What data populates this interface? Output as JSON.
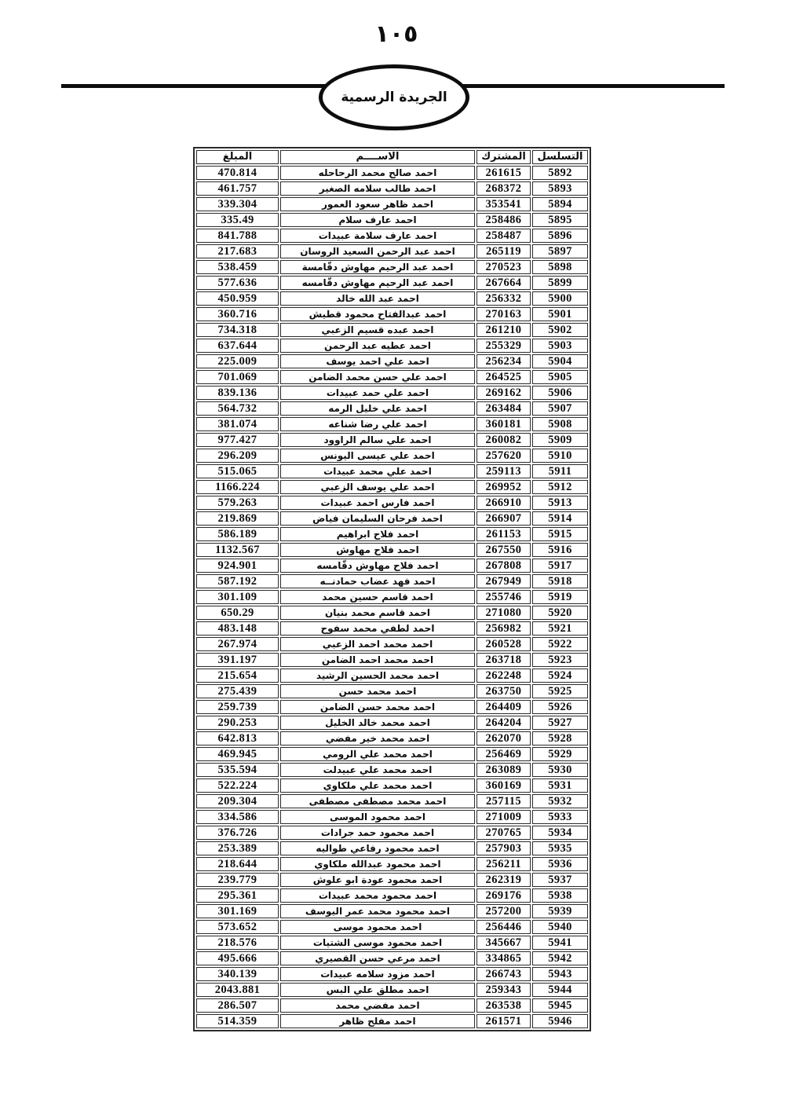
{
  "page": {
    "number_label": "١٠٥"
  },
  "banner": {
    "title": "الجريدة الرسمية"
  },
  "table": {
    "headers": {
      "serial": "التسلسل",
      "subscriber": "المشترك",
      "name": "الاســــم",
      "amount": "المبلغ"
    },
    "rows": [
      {
        "serial": "5892",
        "subscriber": "261615",
        "name": "احمد صالح محمد الرحاحله",
        "amount": "470.814"
      },
      {
        "serial": "5893",
        "subscriber": "268372",
        "name": "احمد طالب سلامه الصغير",
        "amount": "461.757"
      },
      {
        "serial": "5894",
        "subscriber": "353541",
        "name": "احمد ظاهر سعود العمور",
        "amount": "339.304"
      },
      {
        "serial": "5895",
        "subscriber": "258486",
        "name": "احمد عارف سلام",
        "amount": "335.49"
      },
      {
        "serial": "5896",
        "subscriber": "258487",
        "name": "احمد عارف سلامة عبيدات",
        "amount": "841.788"
      },
      {
        "serial": "5897",
        "subscriber": "265119",
        "name": "احمد عبد الرحمن السعيد الروسان",
        "amount": "217.683"
      },
      {
        "serial": "5898",
        "subscriber": "270523",
        "name": "احمد عبد الرحيم مهاوش دقّامسة",
        "amount": "538.459"
      },
      {
        "serial": "5899",
        "subscriber": "267664",
        "name": "احمد عبد الرحيم مهاوش دقّامسه",
        "amount": "577.636"
      },
      {
        "serial": "5900",
        "subscriber": "256332",
        "name": "احمد عبد الله خالد",
        "amount": "450.959"
      },
      {
        "serial": "5901",
        "subscriber": "270163",
        "name": "احمد عبدالفتاح محمود قطيش",
        "amount": "360.716"
      },
      {
        "serial": "5902",
        "subscriber": "261210",
        "name": "احمد عبده قسيم الزعبي",
        "amount": "734.318"
      },
      {
        "serial": "5903",
        "subscriber": "255329",
        "name": "احمد عطيه عبد الرحمن",
        "amount": "637.644"
      },
      {
        "serial": "5904",
        "subscriber": "256234",
        "name": "احمد علي احمد يوسف",
        "amount": "225.009"
      },
      {
        "serial": "5905",
        "subscriber": "264525",
        "name": "احمد علي حسن محمد الضامن",
        "amount": "701.069"
      },
      {
        "serial": "5906",
        "subscriber": "269162",
        "name": "احمد علي حمد عبيدات",
        "amount": "839.136"
      },
      {
        "serial": "5907",
        "subscriber": "263484",
        "name": "احمد علي خليل الرمه",
        "amount": "564.732"
      },
      {
        "serial": "5908",
        "subscriber": "360181",
        "name": "احمد علي رضا شناعه",
        "amount": "381.074"
      },
      {
        "serial": "5909",
        "subscriber": "260082",
        "name": "احمد علي سالم الراوود",
        "amount": "977.427"
      },
      {
        "serial": "5910",
        "subscriber": "257620",
        "name": "احمد علي عيسى اليونس",
        "amount": "296.209"
      },
      {
        "serial": "5911",
        "subscriber": "259113",
        "name": "احمد علي محمد عبيدات",
        "amount": "515.065"
      },
      {
        "serial": "5912",
        "subscriber": "269952",
        "name": "احمد علي يوسف الزعبي",
        "amount": "1166.224"
      },
      {
        "serial": "5913",
        "subscriber": "266910",
        "name": "احمد فارس احمد عبيدات",
        "amount": "579.263"
      },
      {
        "serial": "5914",
        "subscriber": "266907",
        "name": "احمد فرحان السليمان فياض",
        "amount": "219.869"
      },
      {
        "serial": "5915",
        "subscriber": "261153",
        "name": "احمد فلاح ابراهيم",
        "amount": "586.189"
      },
      {
        "serial": "5916",
        "subscriber": "267550",
        "name": "احمد فلاح مهاوش",
        "amount": "1132.567"
      },
      {
        "serial": "5917",
        "subscriber": "267808",
        "name": "احمد فلاح مهاوش دقّامسه",
        "amount": "924.901"
      },
      {
        "serial": "5918",
        "subscriber": "267949",
        "name": "احمد فهد عضاب حمادنــه",
        "amount": "587.192"
      },
      {
        "serial": "5919",
        "subscriber": "255746",
        "name": "احمد قاسم حسين محمد",
        "amount": "301.109"
      },
      {
        "serial": "5920",
        "subscriber": "271080",
        "name": "احمد قاسم محمد بنيان",
        "amount": "650.29"
      },
      {
        "serial": "5921",
        "subscriber": "256982",
        "name": "احمد لطفي محمد سفوح",
        "amount": "483.148"
      },
      {
        "serial": "5922",
        "subscriber": "260528",
        "name": "احمد محمد احمد الزعبي",
        "amount": "267.974"
      },
      {
        "serial": "5923",
        "subscriber": "263718",
        "name": "احمد محمد احمد الضامن",
        "amount": "391.197"
      },
      {
        "serial": "5924",
        "subscriber": "262248",
        "name": "احمد محمد الحسين الرشيد",
        "amount": "215.654"
      },
      {
        "serial": "5925",
        "subscriber": "263750",
        "name": "احمد محمد حسن",
        "amount": "275.439"
      },
      {
        "serial": "5926",
        "subscriber": "264409",
        "name": "احمد محمد حسن الضامن",
        "amount": "259.739"
      },
      {
        "serial": "5927",
        "subscriber": "264204",
        "name": "احمد محمد خالد الخليل",
        "amount": "290.253"
      },
      {
        "serial": "5928",
        "subscriber": "262070",
        "name": "احمد محمد خير مفضي",
        "amount": "642.813"
      },
      {
        "serial": "5929",
        "subscriber": "256469",
        "name": "احمد محمد علي الرومي",
        "amount": "469.945"
      },
      {
        "serial": "5930",
        "subscriber": "263089",
        "name": "احمد محمد علي عبيدلت",
        "amount": "535.594"
      },
      {
        "serial": "5931",
        "subscriber": "360169",
        "name": "احمد محمد علي ملكاوي",
        "amount": "522.224"
      },
      {
        "serial": "5932",
        "subscriber": "257115",
        "name": "احمد محمد مصطفى مصطفى",
        "amount": "209.304"
      },
      {
        "serial": "5933",
        "subscriber": "271009",
        "name": "احمد محمود الموسى",
        "amount": "334.586"
      },
      {
        "serial": "5934",
        "subscriber": "270765",
        "name": "احمد محمود حمد جرادات",
        "amount": "376.726"
      },
      {
        "serial": "5935",
        "subscriber": "257903",
        "name": "احمد محمود رفاعي طواليه",
        "amount": "253.389"
      },
      {
        "serial": "5936",
        "subscriber": "256211",
        "name": "احمد محمود عبدالله ملكاوي",
        "amount": "218.644"
      },
      {
        "serial": "5937",
        "subscriber": "262319",
        "name": "احمد محمود عودة ابو علوش",
        "amount": "239.779"
      },
      {
        "serial": "5938",
        "subscriber": "269176",
        "name": "احمد محمود محمد عبيدات",
        "amount": "295.361"
      },
      {
        "serial": "5939",
        "subscriber": "257200",
        "name": "احمد محمود محمد عمر اليوسف",
        "amount": "301.169"
      },
      {
        "serial": "5940",
        "subscriber": "256446",
        "name": "احمد محمود موسى",
        "amount": "573.652"
      },
      {
        "serial": "5941",
        "subscriber": "345667",
        "name": "احمد محمود موسى الشتيات",
        "amount": "218.576"
      },
      {
        "serial": "5942",
        "subscriber": "334865",
        "name": "احمد مرعي حسن القصيري",
        "amount": "495.666"
      },
      {
        "serial": "5943",
        "subscriber": "266743",
        "name": "احمد مزود سلامه عبيدات",
        "amount": "340.139"
      },
      {
        "serial": "5944",
        "subscriber": "259343",
        "name": "احمد مطلق علي البس",
        "amount": "2043.881"
      },
      {
        "serial": "5945",
        "subscriber": "263538",
        "name": "احمد مفضي محمد",
        "amount": "286.507"
      },
      {
        "serial": "5946",
        "subscriber": "261571",
        "name": "احمد مفلح ظاهر",
        "amount": "514.359"
      }
    ]
  },
  "colors": {
    "ink": "#0d0d0d",
    "table_border": "#2b2b2b",
    "paper": "#ffffff"
  }
}
